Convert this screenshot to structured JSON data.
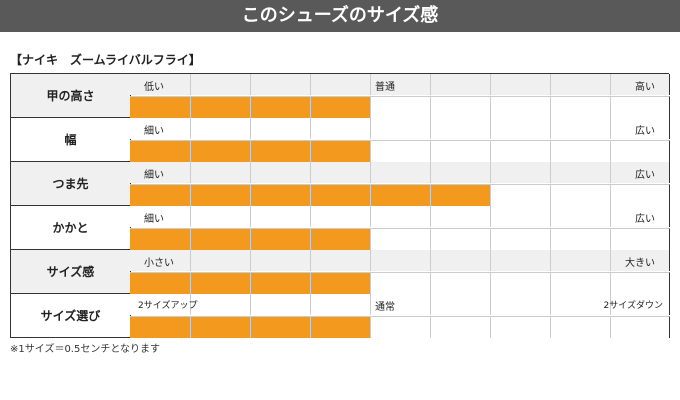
{
  "header": {
    "title": "このシューズのサイズ感"
  },
  "product": {
    "name": "【ナイキ　ズームライバルフライ】"
  },
  "rows": [
    {
      "label": "甲の高さ",
      "left": "低い",
      "middle": "普通",
      "right": "高い",
      "value_segments": 4,
      "total_segments": 9
    },
    {
      "label": "幅",
      "left": "細い",
      "middle": "",
      "right": "広い",
      "value_segments": 4,
      "total_segments": 9
    },
    {
      "label": "つま先",
      "left": "細い",
      "middle": "",
      "right": "広い",
      "value_segments": 6,
      "total_segments": 9
    },
    {
      "label": "かかと",
      "left": "細い",
      "middle": "",
      "right": "広い",
      "value_segments": 4,
      "total_segments": 9
    },
    {
      "label": "サイズ感",
      "left": "小さい",
      "middle": "",
      "right": "大きい",
      "value_segments": 4,
      "total_segments": 9
    },
    {
      "label": "サイズ選び",
      "left": "2サイズアップ",
      "middle": "通常",
      "right": "2サイズダウン",
      "value_segments": 4,
      "total_segments": 9
    }
  ],
  "footnote": "※1サイズ＝0.5センチとなります",
  "colors": {
    "bar": "#f39a1e",
    "header_bg": "#595959"
  }
}
